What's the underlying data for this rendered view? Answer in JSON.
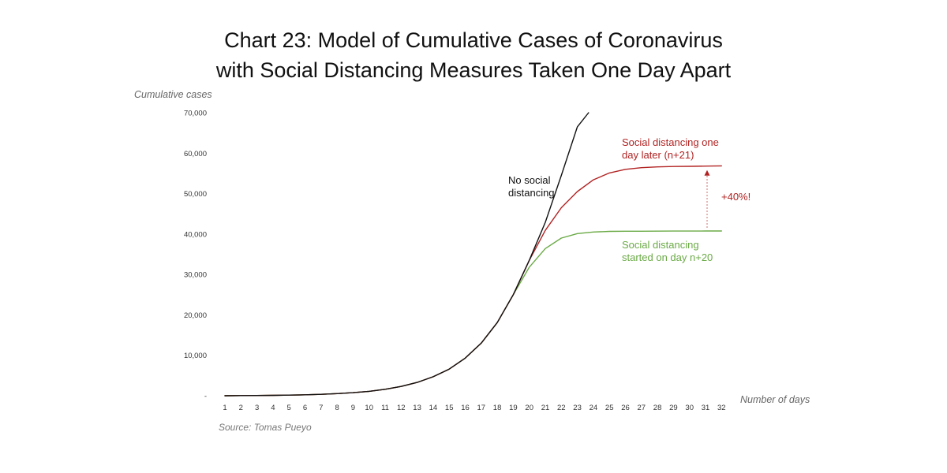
{
  "chart_data": {
    "type": "line",
    "title_lines": [
      "Chart 23: Model of Cumulative Cases of Coronavirus",
      "with Social Distancing Measures Taken One Day Apart"
    ],
    "ylabel": "Cumulative cases",
    "xlabel": "Number of days",
    "source": "Source: Tomas Pueyo",
    "ylim": [
      0,
      70000
    ],
    "yticks": [
      {
        "value": 0,
        "label": "-"
      },
      {
        "value": 10000,
        "label": "10,000"
      },
      {
        "value": 20000,
        "label": "20,000"
      },
      {
        "value": 30000,
        "label": "30,000"
      },
      {
        "value": 40000,
        "label": "40,000"
      },
      {
        "value": 50000,
        "label": "50,000"
      },
      {
        "value": 60000,
        "label": "60,000"
      },
      {
        "value": 70000,
        "label": "70,000"
      }
    ],
    "x": [
      1,
      2,
      3,
      4,
      5,
      6,
      7,
      8,
      9,
      10,
      11,
      12,
      13,
      14,
      15,
      16,
      17,
      18,
      19,
      20,
      21,
      22,
      23,
      24,
      25,
      26,
      27,
      28,
      29,
      30,
      31,
      32
    ],
    "grid": false,
    "series": [
      {
        "id": "no-distancing",
        "color": "#111111",
        "x": [
          1,
          2,
          3,
          4,
          5,
          6,
          7,
          8,
          9,
          10,
          11,
          12,
          13,
          14,
          15,
          16,
          17,
          18,
          19,
          20,
          21,
          22,
          23,
          23.7
        ],
        "values": [
          0,
          30,
          60,
          100,
          160,
          240,
          350,
          520,
          760,
          1100,
          1600,
          2300,
          3300,
          4700,
          6600,
          9300,
          13000,
          18100,
          25000,
          33500,
          42900,
          54500,
          66500,
          70000
        ]
      },
      {
        "id": "day-later",
        "color": "#b22222",
        "x": [
          1,
          2,
          3,
          4,
          5,
          6,
          7,
          8,
          9,
          10,
          11,
          12,
          13,
          14,
          15,
          16,
          17,
          18,
          19,
          20,
          21,
          22,
          23,
          24,
          25,
          26,
          27,
          28,
          29,
          30,
          31,
          32
        ],
        "values": [
          0,
          30,
          60,
          100,
          160,
          240,
          350,
          520,
          760,
          1100,
          1600,
          2300,
          3300,
          4700,
          6600,
          9300,
          13000,
          18100,
          25000,
          33500,
          40900,
          46500,
          50500,
          53400,
          55100,
          56000,
          56400,
          56600,
          56700,
          56750,
          56800,
          56850
        ]
      },
      {
        "id": "day-n20",
        "color": "#6aaa45",
        "x": [
          1,
          2,
          3,
          4,
          5,
          6,
          7,
          8,
          9,
          10,
          11,
          12,
          13,
          14,
          15,
          16,
          17,
          18,
          19,
          20,
          21,
          22,
          23,
          24,
          25,
          26,
          27,
          28,
          29,
          30,
          31,
          32
        ],
        "values": [
          0,
          30,
          60,
          100,
          160,
          240,
          350,
          520,
          760,
          1100,
          1600,
          2300,
          3300,
          4700,
          6600,
          9300,
          13000,
          18100,
          25000,
          31800,
          36400,
          39000,
          40100,
          40500,
          40650,
          40700,
          40700,
          40720,
          40730,
          40740,
          40750,
          40760
        ]
      }
    ],
    "annotations": {
      "no_social": [
        "No social",
        "distancing"
      ],
      "day_later": [
        "Social distancing one",
        "day later (n+21)"
      ],
      "day_n20": [
        "Social distancing",
        "started on day n+20"
      ],
      "increase": "+40%!"
    },
    "colors": {
      "accent_red": "#b22222",
      "accent_green": "#6aaa45",
      "black": "#111111"
    }
  }
}
